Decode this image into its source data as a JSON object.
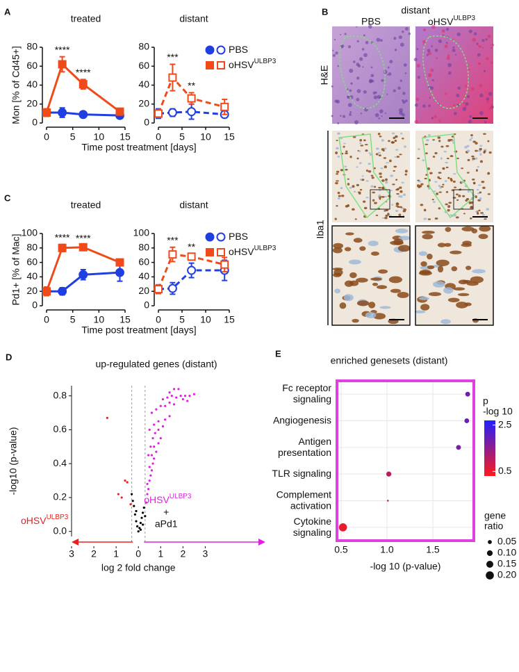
{
  "chart_data": [
    {
      "type": "line",
      "panel": "A",
      "title": "treated",
      "ylabel": "Mon [% of Cd45+]",
      "xlabel": "Time post treatment [days]",
      "x": [
        0,
        3,
        7,
        14
      ],
      "xlim": [
        0,
        15
      ],
      "xticks": [
        0,
        5,
        10,
        15
      ],
      "ylim": [
        0,
        80
      ],
      "yticks": [
        0,
        20,
        40,
        60,
        80
      ],
      "series": [
        {
          "color": "#1f3fe0",
          "marker": "circle",
          "filled": true,
          "dashed": false,
          "values": [
            11,
            11,
            9,
            8
          ],
          "errors": [
            4,
            5,
            2,
            2
          ]
        },
        {
          "color": "#f04a1a",
          "marker": "square",
          "filled": true,
          "dashed": false,
          "values": [
            11,
            62,
            41,
            12
          ],
          "errors": [
            4,
            8,
            5,
            3
          ]
        }
      ],
      "annotations": [
        {
          "x": 3,
          "text": "****"
        },
        {
          "x": 7,
          "text": "****"
        }
      ]
    },
    {
      "type": "line",
      "title": "distant",
      "x": [
        0,
        3,
        7,
        14
      ],
      "xlim": [
        0,
        15
      ],
      "xticks": [
        0,
        5,
        10,
        15
      ],
      "ylim": [
        0,
        80
      ],
      "yticks": [
        0,
        20,
        40,
        60,
        80
      ],
      "series": [
        {
          "name": "PBS",
          "color": "#1f3fe0",
          "marker": "circle",
          "filled": false,
          "dashed": true,
          "values": [
            10,
            11,
            12,
            9
          ],
          "errors": [
            5,
            4,
            8,
            3
          ]
        },
        {
          "name": "oHSV",
          "sup": "ULBP3",
          "color": "#f04a1a",
          "marker": "square",
          "filled": false,
          "dashed": true,
          "values": [
            10,
            48,
            26,
            17
          ],
          "errors": [
            4,
            14,
            6,
            8
          ]
        }
      ],
      "annotations": [
        {
          "x": 3,
          "text": "***"
        },
        {
          "x": 7,
          "text": "**"
        }
      ]
    },
    {
      "type": "line",
      "panel": "C",
      "title": "treated",
      "ylabel": "Pd1+ [% of Mac]",
      "xlabel": "Time post treatment [days]",
      "x": [
        0,
        3,
        7,
        14
      ],
      "xlim": [
        0,
        15
      ],
      "xticks": [
        0,
        5,
        10,
        15
      ],
      "ylim": [
        0,
        100
      ],
      "yticks": [
        0,
        20,
        40,
        60,
        80,
        100
      ],
      "series": [
        {
          "color": "#1f3fe0",
          "marker": "circle",
          "filled": true,
          "dashed": false,
          "values": [
            20,
            20,
            43,
            46
          ],
          "errors": [
            6,
            5,
            7,
            12
          ]
        },
        {
          "color": "#f04a1a",
          "marker": "square",
          "filled": true,
          "dashed": false,
          "values": [
            20,
            80,
            81,
            60
          ],
          "errors": [
            6,
            5,
            3,
            3
          ]
        }
      ],
      "annotations": [
        {
          "x": 3,
          "text": "****"
        },
        {
          "x": 7,
          "text": "****"
        }
      ]
    },
    {
      "type": "line",
      "title": "distant",
      "x": [
        0,
        3,
        7,
        14
      ],
      "xlim": [
        0,
        15
      ],
      "xticks": [
        0,
        5,
        10,
        15
      ],
      "ylim": [
        0,
        100
      ],
      "yticks": [
        0,
        20,
        40,
        60,
        80,
        100
      ],
      "series": [
        {
          "name": "PBS",
          "color": "#1f3fe0",
          "marker": "circle",
          "filled": false,
          "dashed": true,
          "values": [
            23,
            24,
            49,
            49
          ],
          "errors": [
            6,
            8,
            10,
            14
          ]
        },
        {
          "name": "oHSV",
          "sup": "ULBP3",
          "color": "#f04a1a",
          "marker": "square",
          "filled": false,
          "dashed": true,
          "values": [
            23,
            71,
            68,
            57
          ],
          "errors": [
            6,
            10,
            4,
            10
          ]
        }
      ],
      "annotations": [
        {
          "x": 3,
          "text": "***"
        },
        {
          "x": 7,
          "text": "**"
        }
      ]
    },
    {
      "type": "scatter",
      "panel": "D",
      "title": "up-regulated genes (distant)",
      "xlabel": "log 2 fold change",
      "ylabel": "-log10 (p-value)",
      "xlim": [
        -3.0,
        5.7
      ],
      "xticks": [
        {
          "value": -3,
          "label": "3"
        },
        {
          "value": -2,
          "label": "2"
        },
        {
          "value": -1,
          "label": "1"
        },
        0,
        1,
        2,
        3
      ],
      "ylim": [
        -0.03,
        0.86
      ],
      "yticks": [
        {
          "value": 0,
          "label": "0.0"
        },
        0.2,
        0.4,
        0.6,
        0.8
      ],
      "vlines": [
        -0.3,
        0.3
      ],
      "series": [
        {
          "color": "#e8201e",
          "x": [
            -1.4,
            -0.9,
            -0.75,
            -0.6,
            -0.5,
            -0.35
          ],
          "y": [
            0.67,
            0.22,
            0.2,
            0.3,
            0.29,
            0.16
          ]
        },
        {
          "color": "#000000",
          "x": [
            -0.3,
            -0.25,
            -0.2,
            -0.15,
            -0.1,
            -0.1,
            -0.05,
            0,
            0.05,
            0.1,
            0.1,
            0.15,
            0.2,
            0.2,
            0.25,
            0.3
          ],
          "y": [
            0.22,
            0.18,
            0.15,
            0.1,
            0.06,
            0.12,
            0.03,
            0,
            0.02,
            0.05,
            0.01,
            0.08,
            0.11,
            0.04,
            0.14,
            0.09
          ]
        },
        {
          "color": "#e020e0",
          "x": [
            0.35,
            0.4,
            0.45,
            0.5,
            0.55,
            0.6,
            0.65,
            0.7,
            0.4,
            0.5,
            0.6,
            0.7,
            0.8,
            0.9,
            0.45,
            0.55,
            0.65,
            0.75,
            0.9,
            1.0,
            1.1,
            0.5,
            0.7,
            0.9,
            1.2,
            1.4,
            0.6,
            0.8,
            1.0,
            1.2,
            1.4,
            1.6,
            1.1,
            1.3,
            1.5,
            1.7,
            1.9,
            2.1,
            2.3,
            2.5,
            1.6,
            1.8,
            1.4,
            2.0,
            2.2
          ],
          "y": [
            0.17,
            0.22,
            0.25,
            0.3,
            0.33,
            0.36,
            0.4,
            0.43,
            0.28,
            0.38,
            0.45,
            0.5,
            0.47,
            0.52,
            0.45,
            0.5,
            0.55,
            0.58,
            0.6,
            0.55,
            0.62,
            0.6,
            0.63,
            0.65,
            0.66,
            0.68,
            0.7,
            0.72,
            0.74,
            0.74,
            0.76,
            0.75,
            0.78,
            0.79,
            0.8,
            0.79,
            0.8,
            0.8,
            0.8,
            0.81,
            0.84,
            0.84,
            0.82,
            0.78,
            0.77
          ]
        }
      ],
      "labels": [
        {
          "text": "oHSV",
          "sup": "ULBP3",
          "color": "#e8201e"
        },
        {
          "text": "oHSV",
          "sup": "ULBP3",
          "lines": [
            "+",
            "aPd1"
          ],
          "color": "#e020e0"
        }
      ]
    },
    {
      "type": "dot",
      "panel": "E",
      "title": "enriched genesets (distant)",
      "xlabel": "-log 10 (p-value)",
      "categories": [
        [
          "Fc receptor",
          "signaling"
        ],
        [
          "Angiogenesis"
        ],
        [
          "Antigen",
          "presentation"
        ],
        [
          "TLR signaling"
        ],
        [
          "Complement",
          "activation"
        ],
        [
          "Cytokine",
          "signaling"
        ]
      ],
      "values": [
        1.88,
        1.87,
        1.78,
        1.02,
        1.01,
        0.52
      ],
      "sizes": [
        0.07,
        0.07,
        0.07,
        0.08,
        0.01,
        0.2
      ],
      "xlim": [
        0.455,
        1.947
      ],
      "xticks": [
        0.5,
        {
          "value": 1,
          "label": "1.0"
        },
        1.5
      ],
      "grid": true,
      "frame_color": "#e040e0",
      "color_legend": {
        "title": [
          "p",
          "-log 10"
        ],
        "lim": [
          0.3,
          2.7
        ],
        "ticks": [
          2.5,
          0.5
        ],
        "low_color": "#ff1a1a",
        "high_color": "#2020ff"
      },
      "size_legend": {
        "title": [
          "gene",
          "ratio"
        ],
        "values": [
          0.05,
          {
            "value": 0.1,
            "label": "0.10"
          },
          0.15,
          {
            "value": 0.2,
            "label": "0.20"
          }
        ]
      }
    }
  ],
  "panel_b": {
    "panel": "B",
    "title": "distant",
    "columns": [
      {
        "text": "PBS"
      },
      {
        "text": "oHSV",
        "sup": "ULBP3"
      }
    ],
    "rows": [
      "H&E",
      "Iba1"
    ]
  }
}
